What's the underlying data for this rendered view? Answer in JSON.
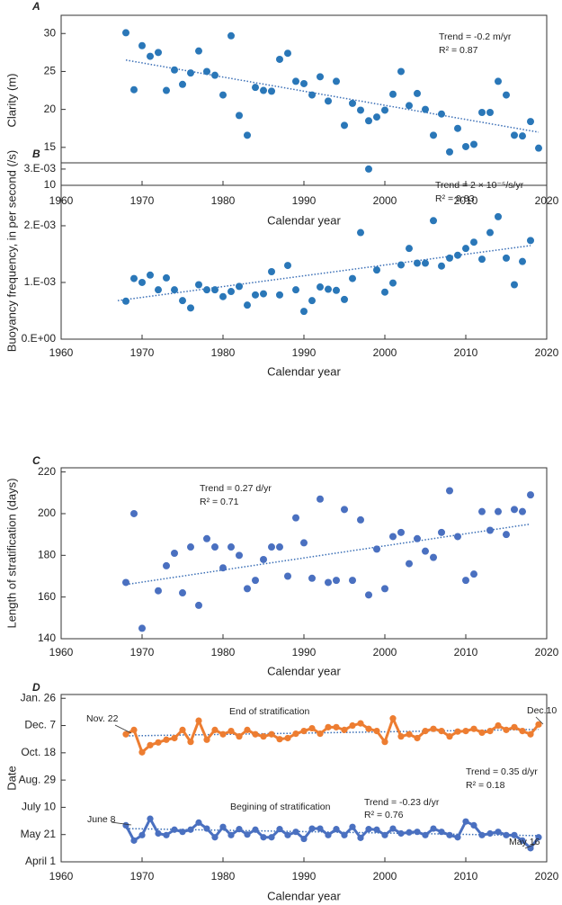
{
  "chart_data": [
    {
      "type": "scatter",
      "panel_label": "A",
      "xlabel": "Calendar year",
      "ylabel": "Clarity (m)",
      "color": "#2a77b8",
      "trend_color": "#3b6fb6",
      "xlim": [
        1960,
        2020
      ],
      "xticks": [
        1960,
        1970,
        1980,
        1990,
        2000,
        2010,
        2020
      ],
      "ylim": [
        10,
        32.4
      ],
      "yticks": [
        10,
        15,
        20,
        25,
        30
      ],
      "x": [
        1968,
        1969,
        1970,
        1971,
        1972,
        1973,
        1974,
        1975,
        1976,
        1977,
        1978,
        1979,
        1980,
        1981,
        1982,
        1983,
        1984,
        1985,
        1986,
        1987,
        1988,
        1989,
        1990,
        1991,
        1992,
        1993,
        1994,
        1995,
        1996,
        1997,
        1998,
        1999,
        2000,
        2001,
        2002,
        2003,
        2004,
        2005,
        2006,
        2007,
        2008,
        2009,
        2010,
        2011,
        2012,
        2013,
        2014,
        2015,
        2016,
        2017,
        2018,
        2019
      ],
      "values": [
        30.1,
        22.6,
        28.4,
        27.0,
        27.5,
        22.5,
        25.2,
        23.3,
        24.8,
        27.7,
        25.0,
        24.5,
        21.9,
        29.7,
        19.2,
        16.6,
        22.9,
        22.5,
        22.4,
        26.6,
        27.4,
        23.7,
        23.4,
        21.9,
        24.3,
        21.1,
        23.7,
        17.9,
        20.8,
        19.9,
        18.5,
        19.0,
        19.9,
        22.0,
        25.0,
        20.5,
        22.1,
        20.0,
        16.6,
        19.4,
        14.4,
        17.5,
        15.1,
        15.4,
        19.6,
        19.6,
        23.7,
        21.9,
        16.6,
        16.5,
        18.4,
        14.9
      ],
      "trend": {
        "x": [
          1968,
          2019
        ],
        "values": [
          26.5,
          17.0
        ]
      },
      "annotations": [
        "Trend = -0.2 m/yr",
        "R² = 0.87"
      ]
    },
    {
      "type": "scatter",
      "panel_label": "B",
      "xlabel": "Calendar year",
      "ylabel": "Buoyancy frequency, in per second (/s)",
      "color": "#2a77b8",
      "trend_color": "#3b6fb6",
      "xlim": [
        1960,
        2020
      ],
      "xticks": [
        1960,
        1970,
        1980,
        1990,
        2000,
        2010,
        2020
      ],
      "ylim": [
        0,
        0.00311
      ],
      "yticks": [
        {
          "value": 0,
          "label": "0.E+00"
        },
        {
          "value": 0.001,
          "label": "1.E-03"
        },
        {
          "value": 0.002,
          "label": "2.E-03"
        },
        {
          "value": 0.003,
          "label": "3.E-03"
        }
      ],
      "x": [
        1968,
        1969,
        1970,
        1971,
        1972,
        1973,
        1974,
        1975,
        1976,
        1977,
        1978,
        1979,
        1980,
        1981,
        1982,
        1983,
        1984,
        1985,
        1986,
        1987,
        1988,
        1989,
        1990,
        1991,
        1992,
        1993,
        1994,
        1995,
        1996,
        1997,
        1998,
        1999,
        2000,
        2001,
        2002,
        2003,
        2004,
        2005,
        2006,
        2007,
        2008,
        2009,
        2010,
        2011,
        2012,
        2013,
        2014,
        2015,
        2016,
        2017,
        2018
      ],
      "values": [
        0.00067,
        0.00107,
        0.001,
        0.00113,
        0.00087,
        0.00108,
        0.00087,
        0.00068,
        0.00055,
        0.00096,
        0.00087,
        0.00087,
        0.00075,
        0.00084,
        0.00093,
        0.0006,
        0.00078,
        0.0008,
        0.00119,
        0.00078,
        0.0013,
        0.00087,
        0.00049,
        0.00068,
        0.00092,
        0.00088,
        0.00086,
        0.0007,
        0.00107,
        0.00188,
        0.003,
        0.00122,
        0.00083,
        0.00099,
        0.00131,
        0.0016,
        0.00134,
        0.00134,
        0.00209,
        0.00129,
        0.00143,
        0.00148,
        0.0016,
        0.00171,
        0.00141,
        0.00188,
        0.00216,
        0.00143,
        0.00096,
        0.00137,
        0.00174
      ],
      "trend": {
        "x": [
          1967,
          2018
        ],
        "values": [
          0.00068,
          0.00165
        ]
      },
      "annotations": [
        "Trend = 2 × 10⁻⁵/s/yr",
        "R² = 0.83"
      ]
    },
    {
      "type": "scatter",
      "panel_label": "C",
      "xlabel": "Calendar year",
      "ylabel": "Length of stratification (days)",
      "color": "#4a70c0",
      "trend_color": "#3b6fb6",
      "xlim": [
        1960,
        2020
      ],
      "xticks": [
        1960,
        1970,
        1980,
        1990,
        2000,
        2010,
        2020
      ],
      "ylim": [
        140,
        222
      ],
      "yticks": [
        140,
        160,
        180,
        200,
        220
      ],
      "x": [
        1968,
        1969,
        1970,
        1972,
        1973,
        1974,
        1975,
        1976,
        1977,
        1978,
        1979,
        1980,
        1981,
        1982,
        1983,
        1984,
        1985,
        1986,
        1987,
        1988,
        1989,
        1990,
        1991,
        1992,
        1993,
        1994,
        1995,
        1996,
        1997,
        1998,
        1999,
        2000,
        2001,
        2002,
        2003,
        2004,
        2005,
        2006,
        2007,
        2008,
        2009,
        2010,
        2011,
        2012,
        2013,
        2014,
        2015,
        2016,
        2017,
        2018
      ],
      "values": [
        167,
        200,
        145,
        163,
        175,
        181,
        162,
        184,
        156,
        188,
        184,
        174,
        184,
        180,
        164,
        168,
        178,
        184,
        184,
        170,
        198,
        186,
        169,
        207,
        167,
        168,
        202,
        168,
        197,
        161,
        183,
        164,
        189,
        191,
        176,
        188,
        182,
        179,
        191,
        211,
        189,
        168,
        171,
        201,
        192,
        201,
        190,
        202,
        201,
        209
      ],
      "trend": {
        "x": [
          1968,
          2018
        ],
        "values": [
          166,
          195
        ]
      },
      "annotations": [
        "Trend = 0.27 d/yr",
        "R² = 0.71"
      ]
    },
    {
      "type": "line",
      "panel_label": "D",
      "xlabel": "Calendar year",
      "ylabel": "Date",
      "trend_color": "#3b6fb6",
      "xlim": [
        1960,
        2020
      ],
      "xticks": [
        1960,
        1970,
        1980,
        1990,
        2000,
        2010,
        2020
      ],
      "ylim": [
        91,
        398
      ],
      "yticks": [
        {
          "value": 91,
          "label": "April 1"
        },
        {
          "value": 141,
          "label": "May 21"
        },
        {
          "value": 191,
          "label": "July 10"
        },
        {
          "value": 241,
          "label": "Aug. 29"
        },
        {
          "value": 291,
          "label": "Oct. 18"
        },
        {
          "value": 341,
          "label": "Dec. 7"
        },
        {
          "value": 391,
          "label": "Jan. 26"
        }
      ],
      "x": [
        1968,
        1969,
        1970,
        1971,
        1972,
        1973,
        1974,
        1975,
        1976,
        1977,
        1978,
        1979,
        1980,
        1981,
        1982,
        1983,
        1984,
        1985,
        1986,
        1987,
        1988,
        1989,
        1990,
        1991,
        1992,
        1993,
        1994,
        1995,
        1996,
        1997,
        1998,
        1999,
        2000,
        2001,
        2002,
        2003,
        2004,
        2005,
        2006,
        2007,
        2008,
        2009,
        2010,
        2011,
        2012,
        2013,
        2014,
        2015,
        2016,
        2017,
        2018,
        2019
      ],
      "series": [
        {
          "name": "End of stratification",
          "color": "#ed7d31",
          "values": [
            325,
            333,
            292,
            305,
            310,
            315,
            318,
            333,
            311,
            350,
            315,
            333,
            325,
            331,
            321,
            333,
            325,
            321,
            325,
            316,
            318,
            326,
            331,
            336,
            326,
            338,
            338,
            333,
            341,
            345,
            335,
            331,
            311,
            354,
            321,
            325,
            318,
            331,
            335,
            331,
            321,
            330,
            331,
            335,
            328,
            331,
            341,
            333,
            338,
            331,
            325,
            343
          ],
          "trend": {
            "x": [
              1968,
              2019
            ],
            "values": [
              322,
              334
            ]
          }
        },
        {
          "name": "Begining of stratification",
          "color": "#4a70c0",
          "values": [
            158,
            130,
            140,
            170,
            143,
            140,
            150,
            146,
            150,
            163,
            152,
            136,
            155,
            140,
            151,
            141,
            150,
            136,
            136,
            151,
            140,
            146,
            133,
            152,
            152,
            140,
            151,
            140,
            155,
            135,
            151,
            150,
            140,
            152,
            143,
            145,
            146,
            140,
            152,
            146,
            140,
            136,
            165,
            158,
            140,
            143,
            146,
            140,
            140,
            130,
            116,
            136
          ],
          "trend": {
            "x": [
              1968,
              2019
            ],
            "values": [
              152,
              139
            ]
          }
        }
      ],
      "annotations": [
        "Nov. 22",
        "Dec.10",
        "Trend = 0.35 d/yr",
        "R² = 0.18",
        "Trend = -0.23 d/yr",
        "R² = 0.76",
        "June 8",
        "May 16"
      ]
    }
  ]
}
